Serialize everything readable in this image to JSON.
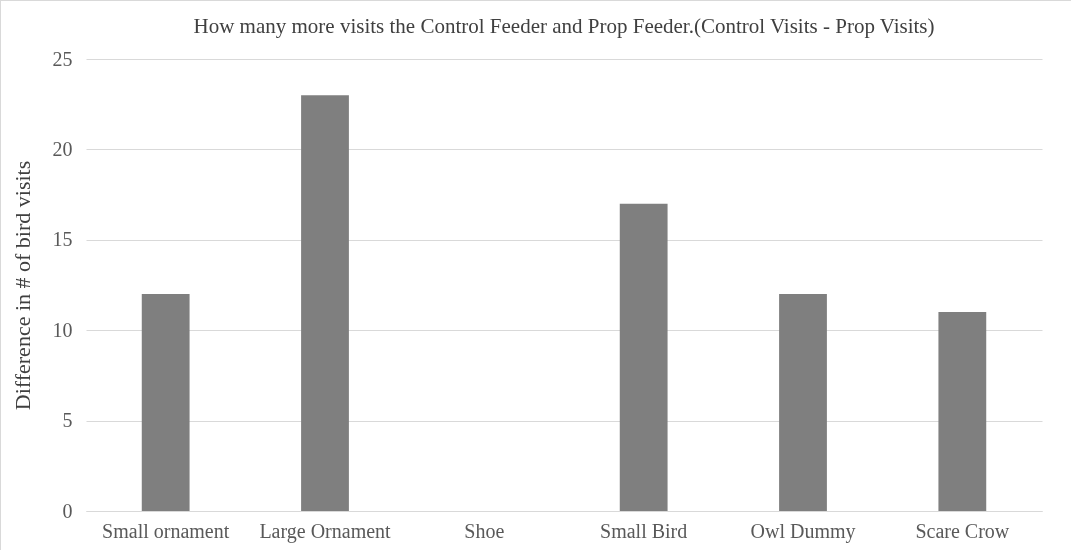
{
  "chart_data": {
    "type": "bar",
    "title": "How many more visits the  Control Feeder and Prop Feeder.(Control Visits - Prop Visits)",
    "ylabel": "Difference in # of bird visits",
    "categories": [
      "Small ornament",
      "Large Ornament",
      "Shoe",
      "Small Bird",
      "Owl Dummy",
      "Scare Crow"
    ],
    "values": [
      12,
      23,
      0,
      17,
      12,
      11
    ],
    "color": "#7f7f7f",
    "ylim": [
      0,
      25
    ],
    "yticks": [
      0,
      5,
      10,
      15,
      20,
      25
    ],
    "grid": "y"
  }
}
